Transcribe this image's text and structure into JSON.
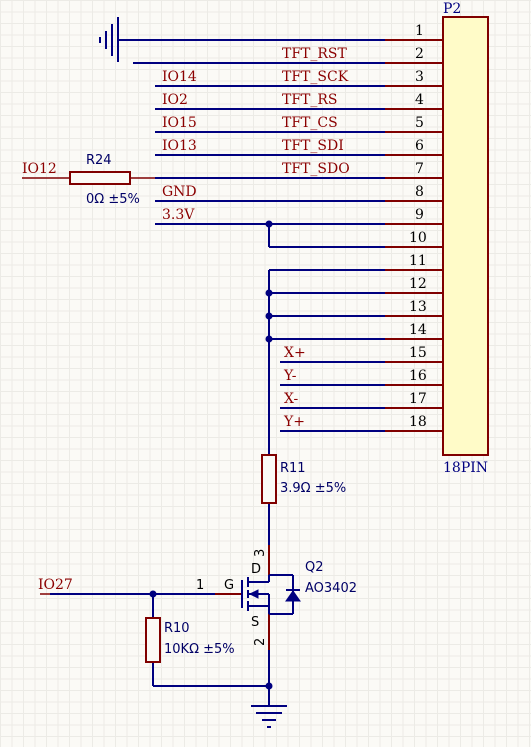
{
  "connector": {
    "designator": "P2",
    "part": "18PIN",
    "pins": [
      "1",
      "2",
      "3",
      "4",
      "5",
      "6",
      "7",
      "8",
      "9",
      "10",
      "11",
      "12",
      "13",
      "14",
      "15",
      "16",
      "17",
      "18"
    ]
  },
  "net_labels": {
    "tft_rst": "TFT_RST",
    "tft_sck": "TFT_SCK",
    "tft_rs": "TFT_RS",
    "tft_cs": "TFT_CS",
    "tft_sdi": "TFT_SDI",
    "tft_sdo": "TFT_SDO",
    "gnd": "GND",
    "v33": "3.3V",
    "xp": "X+",
    "ym": "Y-",
    "xm": "X-",
    "yp": "Y+",
    "io14": "IO14",
    "io2": "IO2",
    "io15": "IO15",
    "io13": "IO13",
    "io12": "IO12",
    "io27": "IO27"
  },
  "components": {
    "r24": {
      "designator": "R24",
      "value": "0Ω ±5%"
    },
    "r11": {
      "designator": "R11",
      "value": "3.9Ω ±5%"
    },
    "r10": {
      "designator": "R10",
      "value": "10KΩ ±5%"
    },
    "q2": {
      "designator": "Q2",
      "part": "AO3402",
      "gate": "G",
      "drain": "D",
      "source": "S",
      "pin_g": "1",
      "pin_d": "3",
      "pin_s": "2"
    }
  },
  "colors": {
    "wire": "#000080",
    "pin": "#800000",
    "connector_fill": "#fffbc8",
    "junction": "#000080"
  }
}
